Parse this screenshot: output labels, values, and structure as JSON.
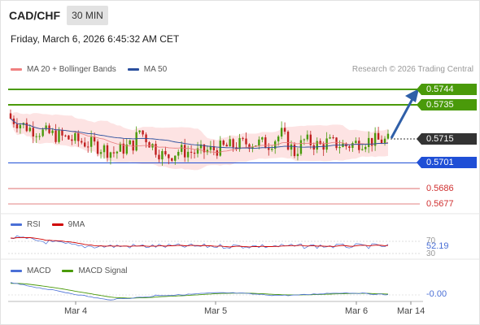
{
  "header": {
    "pair": "CAD/CHF",
    "timeframe": "30 MIN",
    "datetime": "Friday, March 6, 2026 6:45:32 AM CET"
  },
  "legend": {
    "bollinger": {
      "label": "MA 20 + Bollinger Bands",
      "color": "#f08080"
    },
    "ma50": {
      "label": "MA 50",
      "color": "#2a4f9e"
    }
  },
  "credit": "Research © 2026 Trading Central",
  "levels": {
    "r2": {
      "label": "0.5744",
      "value": 0.5744,
      "color": "#4a9a0a"
    },
    "r1": {
      "label": "0.5735",
      "value": 0.5735,
      "color": "#4a9a0a"
    },
    "last": {
      "label": "0.5715",
      "value": 0.5715,
      "color": "#333333"
    },
    "pivot": {
      "label": "0.5701",
      "value": 0.5701,
      "color": "#1f4fd6"
    },
    "s1": {
      "label": "0.5686",
      "value": 0.5686,
      "color": "#d03030"
    },
    "s2": {
      "label": "0.5677",
      "value": 0.5677,
      "color": "#d03030"
    }
  },
  "rsi_panel": {
    "rsi_label": "RSI",
    "ma_label": "9MA",
    "rsi_color": "#4a6fd6",
    "ma_color": "#d00000",
    "tick_70": "70",
    "tick_30": "30",
    "value": "52.19"
  },
  "macd_panel": {
    "macd_label": "MACD",
    "signal_label": "MACD Signal",
    "macd_color": "#4a6fd6",
    "signal_color": "#4a9a0a",
    "value": "-0.00"
  },
  "x_axis": {
    "labels": [
      "Mar 4",
      "Mar 5",
      "Mar 6",
      "Mar 14"
    ]
  },
  "colors": {
    "bull": "#4a9a0a",
    "bear": "#c02020",
    "band_fill": "#fde0e0"
  }
}
